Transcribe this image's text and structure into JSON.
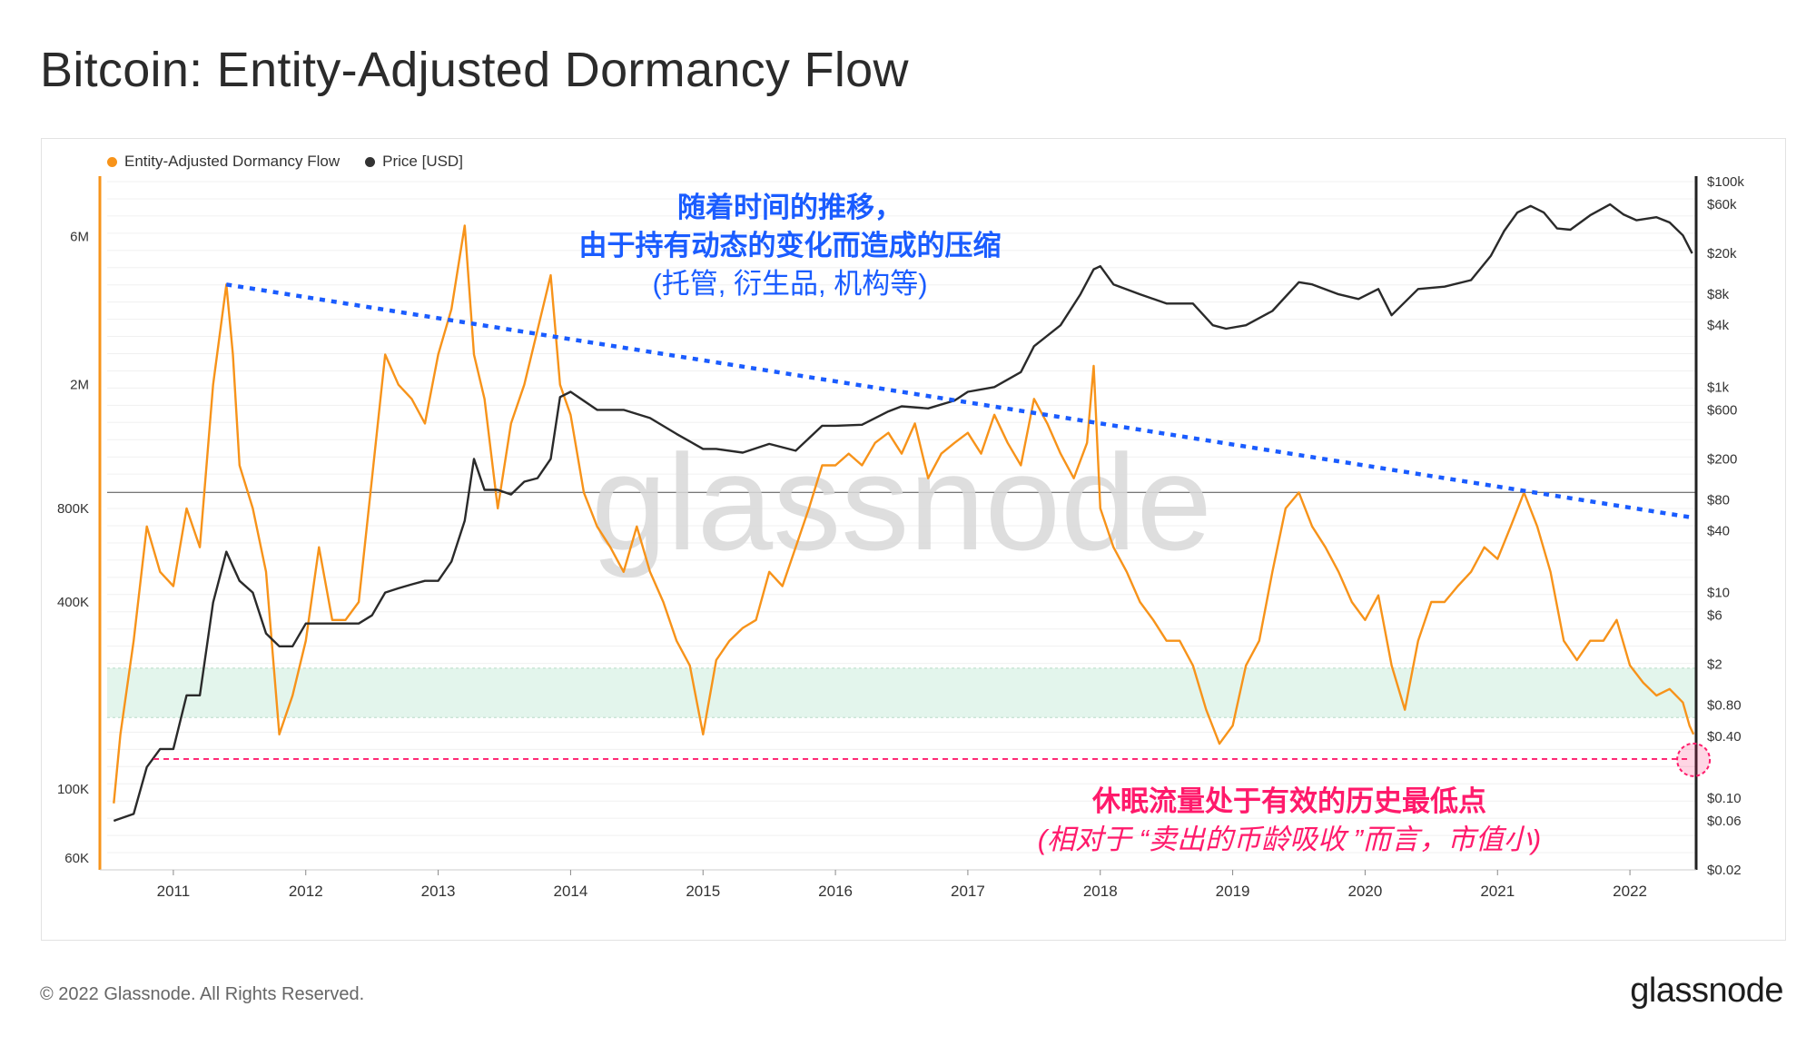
{
  "title": "Bitcoin: Entity-Adjusted Dormancy Flow",
  "footer": {
    "copyright": "© 2022 Glassnode. All Rights Reserved.",
    "logo": "glassnode"
  },
  "watermark": "glassnode",
  "legend": [
    {
      "label": "Entity-Adjusted Dormancy Flow",
      "color": "#f7931a"
    },
    {
      "label": "Price [USD]",
      "color": "#333333"
    }
  ],
  "annotations": {
    "trend_line1": "随着时间的推移，",
    "trend_line2": "由于持有动态的变化而造成的压缩",
    "trend_line3": "(托管, 衍生品, 机构等)",
    "low_line1": "休眠流量处于有效的历史最低点",
    "low_line2": "(相对于 “卖出的币龄吸收 ”而言，市值小)"
  },
  "colors": {
    "dormancy": "#f7931a",
    "price": "#2a2a2a",
    "trend": "#1a5cff",
    "low": "#ff1a6b",
    "band": "#e3f5ec"
  },
  "chart_data": {
    "type": "line",
    "title": "Bitcoin: Entity-Adjusted Dormancy Flow",
    "x_ticks": [
      "2011",
      "2012",
      "2013",
      "2014",
      "2015",
      "2016",
      "2017",
      "2018",
      "2019",
      "2020",
      "2021",
      "2022"
    ],
    "xlim": [
      2010.5,
      2022.5
    ],
    "y_left_scale": "log",
    "y_left_ticks": [
      "6M",
      "2M",
      "800K",
      "400K",
      "100K",
      "60K"
    ],
    "y_left_values": [
      6000000,
      2000000,
      800000,
      400000,
      100000,
      60000
    ],
    "ylim_left": [
      55000,
      9000000
    ],
    "y_right_scale": "log",
    "y_right_ticks": [
      "$100k",
      "$60k",
      "$20k",
      "$8k",
      "$4k",
      "$1k",
      "$600",
      "$200",
      "$80",
      "$40",
      "$10",
      "$6",
      "$2",
      "$0.80",
      "$0.40",
      "$0.10",
      "$0.06",
      "$0.02"
    ],
    "y_right_values": [
      100000,
      60000,
      20000,
      8000,
      4000,
      1000,
      600,
      200,
      80,
      40,
      10,
      6,
      2,
      0.8,
      0.4,
      0.1,
      0.06,
      0.02
    ],
    "ylim_right": [
      0.02,
      100000
    ],
    "series": [
      {
        "name": "Entity-Adjusted Dormancy Flow",
        "x": [
          2010.55,
          2010.6,
          2010.7,
          2010.8,
          2010.9,
          2011.0,
          2011.1,
          2011.2,
          2011.3,
          2011.4,
          2011.45,
          2011.5,
          2011.6,
          2011.7,
          2011.8,
          2011.9,
          2012.0,
          2012.1,
          2012.2,
          2012.3,
          2012.4,
          2012.5,
          2012.6,
          2012.7,
          2012.8,
          2012.9,
          2013.0,
          2013.1,
          2013.2,
          2013.27,
          2013.35,
          2013.45,
          2013.55,
          2013.65,
          2013.75,
          2013.85,
          2013.92,
          2014.0,
          2014.1,
          2014.2,
          2014.3,
          2014.4,
          2014.5,
          2014.6,
          2014.7,
          2014.8,
          2014.9,
          2015.0,
          2015.1,
          2015.2,
          2015.3,
          2015.4,
          2015.5,
          2015.6,
          2015.7,
          2015.8,
          2015.9,
          2016.0,
          2016.1,
          2016.2,
          2016.3,
          2016.4,
          2016.5,
          2016.6,
          2016.7,
          2016.8,
          2016.9,
          2017.0,
          2017.1,
          2017.2,
          2017.3,
          2017.4,
          2017.5,
          2017.6,
          2017.7,
          2017.8,
          2017.9,
          2017.95,
          2018.0,
          2018.1,
          2018.2,
          2018.3,
          2018.4,
          2018.5,
          2018.6,
          2018.7,
          2018.8,
          2018.9,
          2019.0,
          2019.1,
          2019.2,
          2019.3,
          2019.4,
          2019.5,
          2019.6,
          2019.7,
          2019.8,
          2019.9,
          2020.0,
          2020.1,
          2020.2,
          2020.3,
          2020.4,
          2020.5,
          2020.6,
          2020.7,
          2020.8,
          2020.9,
          2021.0,
          2021.1,
          2021.2,
          2021.3,
          2021.4,
          2021.5,
          2021.6,
          2021.7,
          2021.8,
          2021.9,
          2022.0,
          2022.1,
          2022.2,
          2022.3,
          2022.4,
          2022.45,
          2022.48
        ],
        "y": [
          90000,
          150000,
          300000,
          700000,
          500000,
          450000,
          800000,
          600000,
          2000000,
          4200000,
          2500000,
          1100000,
          800000,
          500000,
          150000,
          200000,
          300000,
          600000,
          350000,
          350000,
          400000,
          1000000,
          2500000,
          2000000,
          1800000,
          1500000,
          2500000,
          3500000,
          6500000,
          2500000,
          1800000,
          800000,
          1500000,
          2000000,
          3000000,
          4500000,
          2000000,
          1600000,
          900000,
          700000,
          600000,
          500000,
          700000,
          500000,
          400000,
          300000,
          250000,
          150000,
          260000,
          300000,
          330000,
          350000,
          500000,
          450000,
          600000,
          800000,
          1100000,
          1100000,
          1200000,
          1100000,
          1300000,
          1400000,
          1200000,
          1500000,
          1000000,
          1200000,
          1300000,
          1400000,
          1200000,
          1600000,
          1300000,
          1100000,
          1800000,
          1500000,
          1200000,
          1000000,
          1300000,
          2300000,
          800000,
          600000,
          500000,
          400000,
          350000,
          300000,
          300000,
          250000,
          180000,
          140000,
          160000,
          250000,
          300000,
          500000,
          800000,
          900000,
          700000,
          600000,
          500000,
          400000,
          350000,
          420000,
          250000,
          180000,
          300000,
          400000,
          400000,
          450000,
          500000,
          600000,
          550000,
          700000,
          900000,
          700000,
          500000,
          300000,
          260000,
          300000,
          300000,
          350000,
          250000,
          220000,
          200000,
          210000,
          190000,
          160000,
          150000
        ]
      },
      {
        "name": "Price [USD]",
        "x": [
          2010.55,
          2010.7,
          2010.8,
          2010.9,
          2011.0,
          2011.1,
          2011.2,
          2011.3,
          2011.4,
          2011.45,
          2011.5,
          2011.6,
          2011.7,
          2011.8,
          2011.9,
          2012.0,
          2012.1,
          2012.2,
          2012.3,
          2012.4,
          2012.5,
          2012.6,
          2012.7,
          2012.8,
          2012.9,
          2013.0,
          2013.1,
          2013.2,
          2013.27,
          2013.35,
          2013.45,
          2013.55,
          2013.65,
          2013.75,
          2013.85,
          2013.92,
          2014.0,
          2014.2,
          2014.4,
          2014.6,
          2014.8,
          2015.0,
          2015.1,
          2015.3,
          2015.5,
          2015.7,
          2015.9,
          2016.0,
          2016.2,
          2016.4,
          2016.5,
          2016.7,
          2016.9,
          2017.0,
          2017.2,
          2017.4,
          2017.5,
          2017.7,
          2017.85,
          2017.95,
          2018.0,
          2018.1,
          2018.3,
          2018.5,
          2018.7,
          2018.85,
          2018.95,
          2019.1,
          2019.3,
          2019.5,
          2019.6,
          2019.8,
          2019.95,
          2020.1,
          2020.2,
          2020.4,
          2020.6,
          2020.8,
          2020.95,
          2021.05,
          2021.15,
          2021.25,
          2021.35,
          2021.45,
          2021.55,
          2021.7,
          2021.85,
          2021.95,
          2022.05,
          2022.2,
          2022.3,
          2022.4,
          2022.47
        ],
        "y": [
          0.06,
          0.07,
          0.2,
          0.3,
          0.3,
          1,
          1,
          8,
          25,
          18,
          13,
          10,
          4,
          3,
          3,
          5,
          5,
          5,
          5,
          5,
          6,
          10,
          11,
          12,
          13,
          13,
          20,
          50,
          200,
          100,
          100,
          90,
          120,
          130,
          200,
          800,
          900,
          600,
          600,
          500,
          350,
          250,
          250,
          230,
          280,
          240,
          420,
          420,
          430,
          580,
          650,
          620,
          740,
          900,
          1000,
          1400,
          2500,
          4000,
          8000,
          14000,
          15000,
          10000,
          8000,
          6500,
          6500,
          4000,
          3700,
          4000,
          5500,
          10500,
          10000,
          8000,
          7200,
          9000,
          5000,
          9000,
          9500,
          11000,
          19000,
          33000,
          50000,
          58000,
          50000,
          35000,
          34000,
          47000,
          60000,
          48000,
          42000,
          45000,
          40000,
          30000,
          20000
        ]
      }
    ],
    "trend_line": {
      "x": [
        2011.4,
        2022.45
      ],
      "y": [
        4200000,
        750000
      ]
    },
    "historic_low_line": {
      "y": 125000
    },
    "reference_line": {
      "y": 900000
    },
    "band": {
      "y_range": [
        170000,
        245000
      ]
    }
  }
}
